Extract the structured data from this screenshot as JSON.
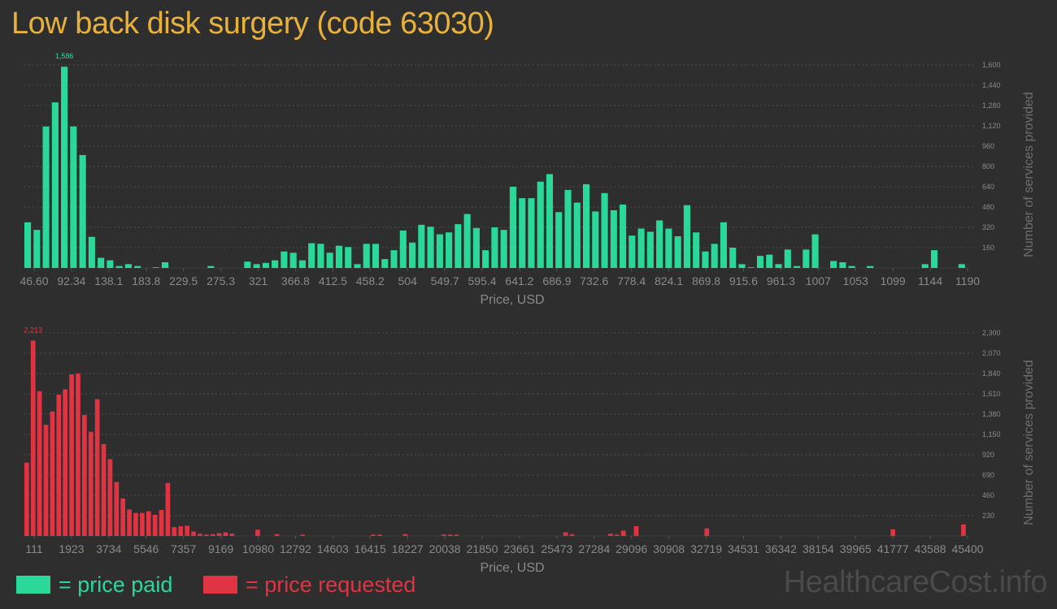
{
  "title": "Low back disk surgery (code 63030)",
  "colors": {
    "paid": "#2ad99a",
    "requested": "#e03444",
    "grid": "#4a4a4a",
    "text": "#8a8a8a",
    "title": "#e8b23a"
  },
  "legend": {
    "paid": "= price paid",
    "requested": "= price requested"
  },
  "watermark": "HealthcareCost.info",
  "chart_data": [
    {
      "type": "bar",
      "name": "price paid",
      "xlabel": "Price, USD",
      "ylabel": "Number of services provided",
      "ylim": [
        0,
        1600
      ],
      "yticks": [
        160,
        320,
        480,
        640,
        800,
        960,
        1120,
        1280,
        1440,
        1600
      ],
      "ytick_labels": [
        "160",
        "320",
        "480",
        "640",
        "800",
        "960",
        "1,120",
        "1,280",
        "1,440",
        "1,600"
      ],
      "xticks": [
        "46.60",
        "92.34",
        "138.1",
        "183.8",
        "229.5",
        "275.3",
        "321",
        "366.8",
        "412.5",
        "458.2",
        "504",
        "549.7",
        "595.4",
        "641.2",
        "686.9",
        "732.6",
        "778.4",
        "824.1",
        "869.8",
        "915.6",
        "961.3",
        "1007",
        "1053",
        "1099",
        "1144",
        "1190"
      ],
      "max_label": "1,586",
      "grid": true,
      "values": [
        360,
        300,
        1115,
        1305,
        1586,
        1115,
        890,
        245,
        80,
        60,
        15,
        30,
        15,
        0,
        5,
        45,
        0,
        0,
        0,
        0,
        15,
        0,
        0,
        0,
        50,
        30,
        40,
        60,
        130,
        120,
        60,
        195,
        190,
        120,
        175,
        165,
        30,
        190,
        190,
        70,
        140,
        295,
        200,
        340,
        325,
        265,
        280,
        345,
        425,
        315,
        140,
        320,
        300,
        640,
        550,
        550,
        680,
        740,
        440,
        615,
        515,
        660,
        445,
        590,
        455,
        500,
        255,
        310,
        285,
        375,
        310,
        250,
        495,
        280,
        130,
        190,
        360,
        160,
        30,
        5,
        95,
        105,
        30,
        145,
        15,
        145,
        265,
        0,
        55,
        45,
        15,
        0,
        15,
        0,
        0,
        0,
        0,
        0,
        30,
        140,
        0,
        0,
        30
      ]
    },
    {
      "type": "bar",
      "name": "price requested",
      "xlabel": "Price, USD",
      "ylabel": "Number of services provided",
      "ylim": [
        0,
        2300
      ],
      "yticks": [
        230,
        460,
        690,
        920,
        1150,
        1380,
        1610,
        1840,
        2070,
        2300
      ],
      "ytick_labels": [
        "230",
        "460",
        "690",
        "920",
        "1,150",
        "1,380",
        "1,610",
        "1,840",
        "2,070",
        "2,300"
      ],
      "xticks": [
        "111",
        "1923",
        "3734",
        "5546",
        "7357",
        "9169",
        "10980",
        "12792",
        "14603",
        "16415",
        "18227",
        "20038",
        "21850",
        "23661",
        "25473",
        "27284",
        "29096",
        "30908",
        "32719",
        "34531",
        "36342",
        "38154",
        "39965",
        "41777",
        "43588",
        "45400"
      ],
      "max_label": "2,213",
      "grid": true,
      "values": [
        830,
        2213,
        1640,
        1260,
        1410,
        1600,
        1660,
        1830,
        1840,
        1370,
        1180,
        1550,
        1040,
        870,
        610,
        425,
        300,
        260,
        260,
        280,
        240,
        295,
        600,
        100,
        110,
        115,
        50,
        25,
        15,
        20,
        30,
        40,
        25,
        0,
        0,
        0,
        70,
        0,
        0,
        20,
        0,
        0,
        0,
        15,
        0,
        0,
        0,
        0,
        0,
        0,
        0,
        0,
        0,
        0,
        15,
        15,
        0,
        0,
        0,
        20,
        0,
        0,
        0,
        0,
        0,
        15,
        15,
        15,
        0,
        0,
        0,
        0,
        0,
        0,
        0,
        0,
        0,
        0,
        0,
        0,
        0,
        0,
        0,
        0,
        40,
        20,
        0,
        0,
        0,
        0,
        0,
        25,
        15,
        60,
        0,
        110,
        0,
        0,
        0,
        0,
        0,
        0,
        0,
        0,
        0,
        0,
        85,
        0,
        0,
        0,
        0,
        0,
        0,
        0,
        0,
        0,
        0,
        0,
        0,
        0,
        0,
        0,
        0,
        0,
        0,
        0,
        0,
        0,
        0,
        0,
        0,
        0,
        0,
        0,
        0,
        75,
        0,
        0,
        0,
        0,
        0,
        0,
        0,
        0,
        0,
        0,
        130
      ]
    }
  ]
}
